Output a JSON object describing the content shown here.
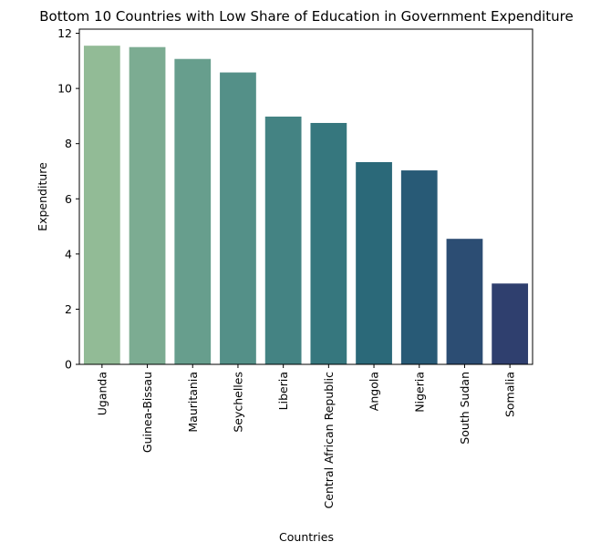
{
  "chart_data": {
    "type": "bar",
    "title": "Bottom 10 Countries with Low Share of Education in Government Expenditure",
    "xlabel": "Countries",
    "ylabel": "Expenditure",
    "categories": [
      "Uganda",
      "Guinea-Bissau",
      "Mauritania",
      "Seychelles",
      "Liberia",
      "Central African Republic",
      "Angola",
      "Nigeria",
      "South Sudan",
      "Somalia"
    ],
    "values": [
      11.55,
      11.5,
      11.07,
      10.58,
      8.98,
      8.75,
      7.33,
      7.03,
      4.55,
      2.93
    ],
    "colors": [
      "#92bb96",
      "#7cac92",
      "#679e8d",
      "#549088",
      "#448383",
      "#36777e",
      "#2b6979",
      "#285a76",
      "#2c4d73",
      "#2f3f6e"
    ],
    "ylim": [
      0,
      12.15
    ],
    "yticks": [
      0,
      2,
      4,
      6,
      8,
      10,
      12
    ],
    "grid": false,
    "legend": "none"
  }
}
